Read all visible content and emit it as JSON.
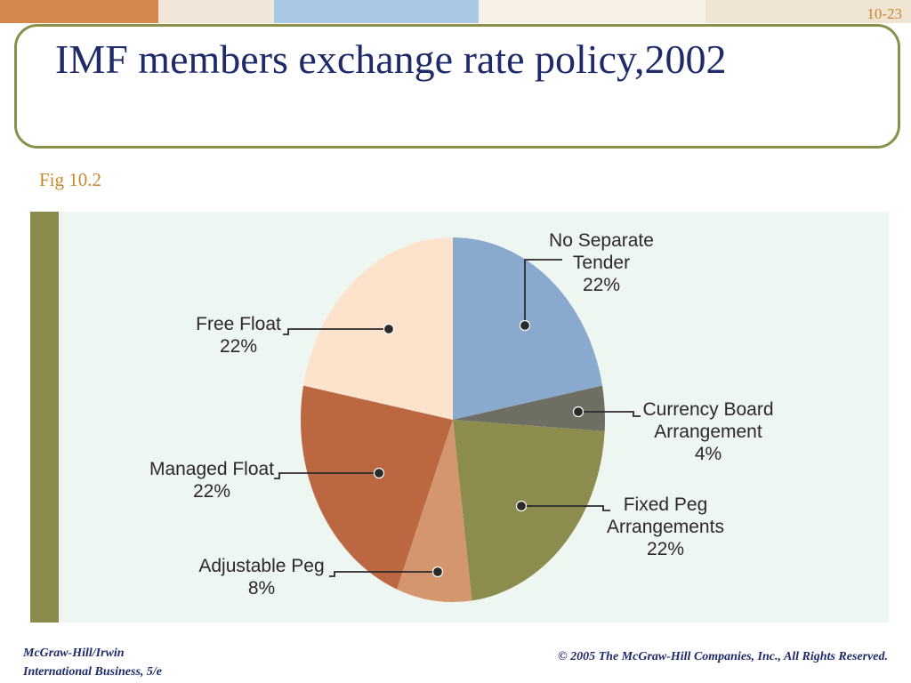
{
  "slide": {
    "number": "10-23",
    "title": "IMF members exchange rate policy,2002",
    "figure_label": "Fig 10.2",
    "footer_left_line1": "McGraw-Hill/Irwin",
    "footer_left_line2": "International Business, 5/e",
    "footer_right": "© 2005 The McGraw-Hill Companies, Inc., All Rights Reserved."
  },
  "colors": {
    "title": "#1f2a6b",
    "accent": "#c8882e",
    "frame": "#8a8f4a",
    "panel": "#eef6f1"
  },
  "chart_data": {
    "type": "pie",
    "title": "",
    "slices": [
      {
        "name": "No Separate Tender",
        "label_lines": [
          "No Separate",
          "Tender",
          "22%"
        ],
        "value": 22,
        "color": "#89a9cf"
      },
      {
        "name": "Currency Board Arrangement",
        "label_lines": [
          "Currency Board",
          "Arrangement",
          "4%"
        ],
        "value": 4,
        "color": "#6f6e62"
      },
      {
        "name": "Fixed Peg Arrangements",
        "label_lines": [
          "Fixed Peg",
          "Arrangements",
          "22%"
        ],
        "value": 22,
        "color": "#8b8c4e"
      },
      {
        "name": "Adjustable Peg",
        "label_lines": [
          "Adjustable Peg",
          "8%"
        ],
        "value": 8,
        "color": "#d4966e"
      },
      {
        "name": "Managed Float",
        "label_lines": [
          "Managed Float",
          "22%"
        ],
        "value": 22,
        "color": "#bb6842"
      },
      {
        "name": "Free Float",
        "label_lines": [
          "Free Float",
          "22%"
        ],
        "value": 22,
        "color": "#fde3cc"
      }
    ]
  }
}
